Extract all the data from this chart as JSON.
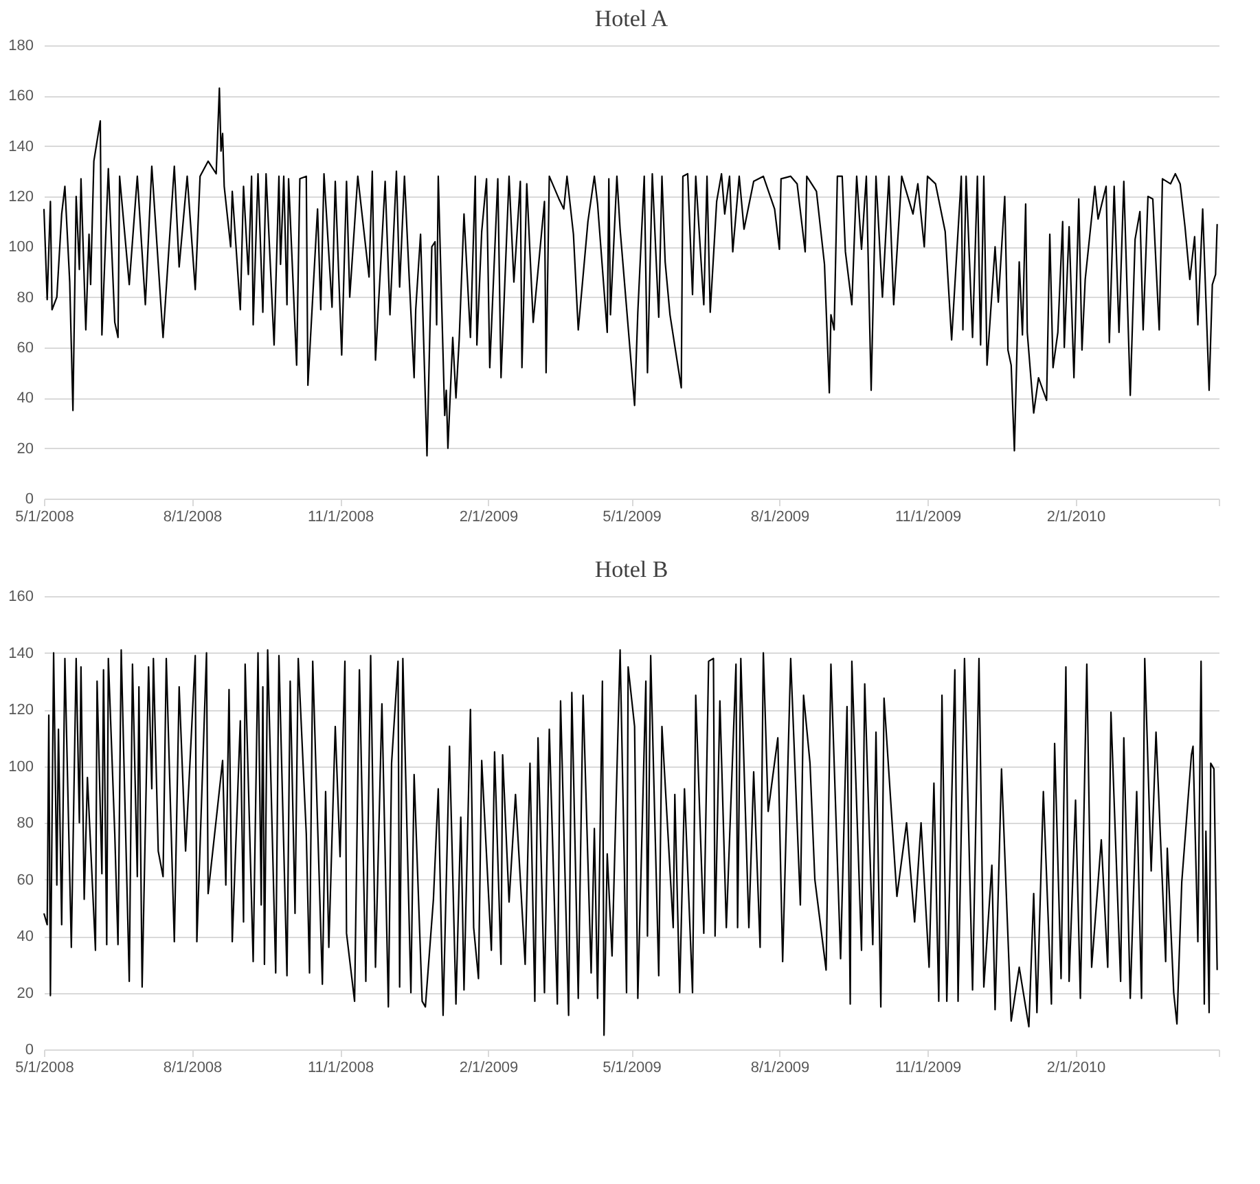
{
  "chart_data": [
    {
      "type": "line",
      "title": "Hotel A",
      "color": "#000000",
      "grid": "y",
      "line_style": "solid",
      "xlim": [
        "2008-05-01",
        "2010-05-01"
      ],
      "xticks": [
        {
          "value": "2008-05-01",
          "label": "5/1/2008"
        },
        {
          "value": "2008-08-01",
          "label": "8/1/2008"
        },
        {
          "value": "2008-11-01",
          "label": "11/1/2008"
        },
        {
          "value": "2009-02-01",
          "label": "2/1/2009"
        },
        {
          "value": "2009-05-01",
          "label": "5/1/2009"
        },
        {
          "value": "2009-08-01",
          "label": "8/1/2009"
        },
        {
          "value": "2009-11-01",
          "label": "11/1/2009"
        },
        {
          "value": "2010-02-01",
          "label": "2/1/2010"
        },
        {
          "value": "2010-05-01",
          "label": null
        }
      ],
      "ylim": [
        0,
        180
      ],
      "yticks": [
        0,
        20,
        40,
        60,
        80,
        100,
        120,
        140,
        160,
        180
      ],
      "x": [
        "2008-05-01",
        "2008-05-03",
        "2008-05-05",
        "2008-05-06",
        "2008-05-09",
        "2008-05-12",
        "2008-05-14",
        "2008-05-17",
        "2008-05-19",
        "2008-05-21",
        "2008-05-23",
        "2008-05-24",
        "2008-05-27",
        "2008-05-29",
        "2008-05-30",
        "2008-06-01",
        "2008-06-05",
        "2008-06-06",
        "2008-06-10",
        "2008-06-14",
        "2008-06-16",
        "2008-06-17",
        "2008-06-23",
        "2008-06-28",
        "2008-07-03",
        "2008-07-07",
        "2008-07-14",
        "2008-07-21",
        "2008-07-24",
        "2008-07-29",
        "2008-08-03",
        "2008-08-06",
        "2008-08-11",
        "2008-08-16",
        "2008-08-18",
        "2008-08-19",
        "2008-08-20",
        "2008-08-21",
        "2008-08-25",
        "2008-08-26",
        "2008-08-31",
        "2008-09-02",
        "2008-09-05",
        "2008-09-07",
        "2008-09-08",
        "2008-09-11",
        "2008-09-14",
        "2008-09-16",
        "2008-09-21",
        "2008-09-24",
        "2008-09-25",
        "2008-09-27",
        "2008-09-29",
        "2008-09-30",
        "2008-10-05",
        "2008-10-07",
        "2008-10-11",
        "2008-10-12",
        "2008-10-18",
        "2008-10-20",
        "2008-10-22",
        "2008-10-27",
        "2008-10-29",
        "2008-11-02",
        "2008-11-05",
        "2008-11-07",
        "2008-11-12",
        "2008-11-19",
        "2008-11-21",
        "2008-11-23",
        "2008-11-29",
        "2008-12-02",
        "2008-12-06",
        "2008-12-08",
        "2008-12-11",
        "2008-12-14",
        "2008-12-17",
        "2008-12-18",
        "2008-12-21",
        "2008-12-25",
        "2008-12-28",
        "2008-12-30",
        "2008-12-31",
        "2009-01-01",
        "2009-01-05",
        "2009-01-06",
        "2009-01-07",
        "2009-01-10",
        "2009-01-12",
        "2009-01-14",
        "2009-01-17",
        "2009-01-21",
        "2009-01-24",
        "2009-01-25",
        "2009-01-28",
        "2009-01-31",
        "2009-02-02",
        "2009-02-07",
        "2009-02-09",
        "2009-02-14",
        "2009-02-17",
        "2009-02-21",
        "2009-02-22",
        "2009-02-25",
        "2009-03-01",
        "2009-03-08",
        "2009-03-09",
        "2009-03-11",
        "2009-03-17",
        "2009-03-20",
        "2009-03-22",
        "2009-03-26",
        "2009-03-29",
        "2009-04-04",
        "2009-04-08",
        "2009-04-10",
        "2009-04-16",
        "2009-04-17",
        "2009-04-18",
        "2009-04-22",
        "2009-04-24",
        "2009-05-03",
        "2009-05-05",
        "2009-05-09",
        "2009-05-11",
        "2009-05-14",
        "2009-05-18",
        "2009-05-20",
        "2009-05-22",
        "2009-05-25",
        "2009-06-01",
        "2009-06-02",
        "2009-06-05",
        "2009-06-08",
        "2009-06-10",
        "2009-06-15",
        "2009-06-17",
        "2009-06-19",
        "2009-06-23",
        "2009-06-26",
        "2009-06-28",
        "2009-07-01",
        "2009-07-03",
        "2009-07-07",
        "2009-07-10",
        "2009-07-16",
        "2009-07-22",
        "2009-07-29",
        "2009-08-01",
        "2009-08-02",
        "2009-08-08",
        "2009-08-12",
        "2009-08-17",
        "2009-08-18",
        "2009-08-24",
        "2009-08-29",
        "2009-09-01",
        "2009-09-02",
        "2009-09-04",
        "2009-09-06",
        "2009-09-09",
        "2009-09-11",
        "2009-09-15",
        "2009-09-18",
        "2009-09-21",
        "2009-09-24",
        "2009-09-27",
        "2009-09-30",
        "2009-10-04",
        "2009-10-08",
        "2009-10-11",
        "2009-10-16",
        "2009-10-23",
        "2009-10-26",
        "2009-10-30",
        "2009-11-01",
        "2009-11-06",
        "2009-11-12",
        "2009-11-16",
        "2009-11-22",
        "2009-11-23",
        "2009-11-25",
        "2009-11-29",
        "2009-12-02",
        "2009-12-04",
        "2009-12-06",
        "2009-12-08",
        "2009-12-13",
        "2009-12-15",
        "2009-12-19",
        "2009-12-21",
        "2009-12-23",
        "2009-12-25",
        "2009-12-28",
        "2009-12-30",
        "2010-01-01",
        "2010-01-02",
        "2010-01-06",
        "2010-01-09",
        "2010-01-14",
        "2010-01-16",
        "2010-01-18",
        "2010-01-21",
        "2010-01-24",
        "2010-01-25",
        "2010-01-28",
        "2010-01-31",
        "2010-02-03",
        "2010-02-05",
        "2010-02-07",
        "2010-02-13",
        "2010-02-15",
        "2010-02-20",
        "2010-02-22",
        "2010-02-25",
        "2010-02-28",
        "2010-03-03",
        "2010-03-07",
        "2010-03-10",
        "2010-03-13",
        "2010-03-15",
        "2010-03-18",
        "2010-03-21",
        "2010-03-25",
        "2010-03-27",
        "2010-04-01",
        "2010-04-04",
        "2010-04-07",
        "2010-04-10",
        "2010-04-13",
        "2010-04-16",
        "2010-04-18",
        "2010-04-21",
        "2010-04-25",
        "2010-04-27",
        "2010-04-29",
        "2010-04-30"
      ],
      "values": [
        115,
        79,
        118,
        75,
        80,
        113,
        124,
        86,
        35,
        120,
        91,
        127,
        67,
        105,
        85,
        134,
        150,
        65,
        131,
        70,
        64,
        128,
        85,
        128,
        77,
        132,
        64,
        132,
        92,
        128,
        83,
        128,
        134,
        129,
        163,
        138,
        145,
        124,
        100,
        122,
        75,
        124,
        89,
        128,
        69,
        129,
        74,
        129,
        61,
        128,
        93,
        128,
        77,
        127,
        53,
        127,
        128,
        45,
        115,
        75,
        129,
        76,
        126,
        57,
        126,
        80,
        128,
        88,
        130,
        55,
        126,
        73,
        130,
        84,
        128,
        87,
        48,
        75,
        105,
        17,
        100,
        102,
        69,
        128,
        33,
        43,
        20,
        64,
        40,
        63,
        113,
        64,
        128,
        61,
        106,
        127,
        52,
        127,
        48,
        128,
        86,
        126,
        52,
        125,
        70,
        118,
        50,
        128,
        119,
        115,
        128,
        105,
        67,
        110,
        128,
        117,
        66,
        127,
        73,
        128,
        107,
        37,
        74,
        128,
        50,
        129,
        72,
        128,
        94,
        73,
        44,
        128,
        129,
        81,
        128,
        77,
        128,
        74,
        118,
        129,
        113,
        128,
        98,
        128,
        107,
        126,
        128,
        115,
        99,
        127,
        128,
        125,
        98,
        128,
        122,
        93,
        42,
        73,
        67,
        128,
        128,
        98,
        77,
        128,
        99,
        128,
        43,
        128,
        80,
        128,
        77,
        128,
        113,
        125,
        100,
        128,
        125,
        106,
        63,
        128,
        67,
        128,
        64,
        128,
        61,
        128,
        53,
        100,
        78,
        120,
        59,
        53,
        19,
        94,
        65,
        117,
        66,
        34,
        48,
        39,
        105,
        52,
        66,
        110,
        60,
        108,
        48,
        119,
        59,
        87,
        124,
        111,
        124,
        62,
        124,
        66,
        126,
        41,
        103,
        114,
        67,
        120,
        119,
        67,
        127,
        125,
        129,
        125,
        108,
        87,
        104,
        69,
        115,
        43,
        85,
        89,
        109
      ]
    },
    {
      "type": "line",
      "title": "Hotel B",
      "color": "#000000",
      "grid": "y",
      "line_style": "solid",
      "xlim": [
        "2008-05-01",
        "2010-05-01"
      ],
      "xticks": [
        {
          "value": "2008-05-01",
          "label": "5/1/2008"
        },
        {
          "value": "2008-08-01",
          "label": "8/1/2008"
        },
        {
          "value": "2008-11-01",
          "label": "11/1/2008"
        },
        {
          "value": "2009-02-01",
          "label": "2/1/2009"
        },
        {
          "value": "2009-05-01",
          "label": "5/1/2009"
        },
        {
          "value": "2009-08-01",
          "label": "8/1/2009"
        },
        {
          "value": "2009-11-01",
          "label": "11/1/2009"
        },
        {
          "value": "2010-02-01",
          "label": "2/1/2010"
        },
        {
          "value": "2010-05-01",
          "label": null
        }
      ],
      "ylim": [
        0,
        160
      ],
      "yticks": [
        0,
        20,
        40,
        60,
        80,
        100,
        120,
        140,
        160
      ],
      "x": [
        "2008-05-01",
        "2008-05-03",
        "2008-05-04",
        "2008-05-05",
        "2008-05-07",
        "2008-05-09",
        "2008-05-10",
        "2008-05-12",
        "2008-05-14",
        "2008-05-18",
        "2008-05-21",
        "2008-05-23",
        "2008-05-24",
        "2008-05-26",
        "2008-05-28",
        "2008-06-02",
        "2008-06-03",
        "2008-06-06",
        "2008-06-07",
        "2008-06-09",
        "2008-06-10",
        "2008-06-14",
        "2008-06-16",
        "2008-06-18",
        "2008-06-23",
        "2008-06-25",
        "2008-06-28",
        "2008-06-29",
        "2008-07-01",
        "2008-07-05",
        "2008-07-07",
        "2008-07-08",
        "2008-07-11",
        "2008-07-14",
        "2008-07-16",
        "2008-07-21",
        "2008-07-24",
        "2008-07-28",
        "2008-08-03",
        "2008-08-04",
        "2008-08-10",
        "2008-08-11",
        "2008-08-16",
        "2008-08-20",
        "2008-08-22",
        "2008-08-24",
        "2008-08-26",
        "2008-08-31",
        "2008-09-02",
        "2008-09-03",
        "2008-09-08",
        "2008-09-11",
        "2008-09-13",
        "2008-09-14",
        "2008-09-15",
        "2008-09-17",
        "2008-09-22",
        "2008-09-24",
        "2008-09-29",
        "2008-10-01",
        "2008-10-04",
        "2008-10-06",
        "2008-10-11",
        "2008-10-13",
        "2008-10-15",
        "2008-10-21",
        "2008-10-23",
        "2008-10-25",
        "2008-10-29",
        "2008-11-01",
        "2008-11-04",
        "2008-11-05",
        "2008-11-10",
        "2008-11-13",
        "2008-11-17",
        "2008-11-20",
        "2008-11-23",
        "2008-11-27",
        "2008-12-01",
        "2008-12-03",
        "2008-12-07",
        "2008-12-08",
        "2008-12-10",
        "2008-12-15",
        "2008-12-17",
        "2008-12-22",
        "2008-12-24",
        "2008-12-29",
        "2009-01-01",
        "2009-01-04",
        "2009-01-08",
        "2009-01-12",
        "2009-01-15",
        "2009-01-17",
        "2009-01-21",
        "2009-01-23",
        "2009-01-26",
        "2009-01-28",
        "2009-02-03",
        "2009-02-05",
        "2009-02-09",
        "2009-02-10",
        "2009-02-14",
        "2009-02-18",
        "2009-02-24",
        "2009-02-27",
        "2009-03-02",
        "2009-03-04",
        "2009-03-08",
        "2009-03-11",
        "2009-03-16",
        "2009-03-18",
        "2009-03-23",
        "2009-03-25",
        "2009-03-29",
        "2009-04-01",
        "2009-04-06",
        "2009-04-08",
        "2009-04-10",
        "2009-04-13",
        "2009-04-14",
        "2009-04-16",
        "2009-04-19",
        "2009-04-24",
        "2009-04-26",
        "2009-04-28",
        "2009-04-29",
        "2009-05-03",
        "2009-05-05",
        "2009-05-10",
        "2009-05-11",
        "2009-05-13",
        "2009-05-18",
        "2009-05-20",
        "2009-05-27",
        "2009-05-28",
        "2009-05-31",
        "2009-06-03",
        "2009-06-08",
        "2009-06-10",
        "2009-06-15",
        "2009-06-18",
        "2009-06-21",
        "2009-06-22",
        "2009-06-25",
        "2009-06-29",
        "2009-07-05",
        "2009-07-06",
        "2009-07-08",
        "2009-07-13",
        "2009-07-16",
        "2009-07-20",
        "2009-07-22",
        "2009-07-25",
        "2009-07-31",
        "2009-08-03",
        "2009-08-08",
        "2009-08-14",
        "2009-08-16",
        "2009-08-20",
        "2009-08-23",
        "2009-08-30",
        "2009-09-02",
        "2009-09-08",
        "2009-09-12",
        "2009-09-14",
        "2009-09-15",
        "2009-09-21",
        "2009-09-23",
        "2009-09-28",
        "2009-09-30",
        "2009-10-03",
        "2009-10-05",
        "2009-10-13",
        "2009-10-19",
        "2009-10-24",
        "2009-10-28",
        "2009-11-02",
        "2009-11-05",
        "2009-11-08",
        "2009-11-10",
        "2009-11-13",
        "2009-11-18",
        "2009-11-20",
        "2009-11-24",
        "2009-11-29",
        "2009-12-03",
        "2009-12-06",
        "2009-12-11",
        "2009-12-13",
        "2009-12-17",
        "2009-12-23",
        "2009-12-28",
        "2010-01-03",
        "2010-01-06",
        "2010-01-08",
        "2010-01-12",
        "2010-01-17",
        "2010-01-19",
        "2010-01-23",
        "2010-01-26",
        "2010-01-28",
        "2010-02-01",
        "2010-02-04",
        "2010-02-08",
        "2010-02-11",
        "2010-02-17",
        "2010-02-21",
        "2010-02-23",
        "2010-03-01",
        "2010-03-03",
        "2010-03-07",
        "2010-03-11",
        "2010-03-14",
        "2010-03-16",
        "2010-03-20",
        "2010-03-23",
        "2010-03-29",
        "2010-03-30",
        "2010-04-03",
        "2010-04-05",
        "2010-04-08",
        "2010-04-14",
        "2010-04-15",
        "2010-04-18",
        "2010-04-20",
        "2010-04-22",
        "2010-04-23",
        "2010-04-25",
        "2010-04-26",
        "2010-04-28",
        "2010-04-30"
      ],
      "values": [
        48,
        44,
        118,
        19,
        140,
        58,
        113,
        44,
        138,
        36,
        138,
        80,
        135,
        53,
        96,
        35,
        130,
        62,
        134,
        37,
        138,
        76,
        37,
        141,
        24,
        136,
        61,
        128,
        22,
        135,
        92,
        138,
        70,
        61,
        138,
        38,
        128,
        70,
        139,
        38,
        140,
        55,
        81,
        102,
        58,
        127,
        38,
        116,
        45,
        136,
        31,
        140,
        51,
        128,
        30,
        141,
        27,
        139,
        26,
        130,
        48,
        138,
        76,
        27,
        137,
        23,
        91,
        36,
        114,
        68,
        137,
        41,
        17,
        134,
        24,
        139,
        29,
        122,
        15,
        101,
        137,
        22,
        138,
        20,
        97,
        17,
        15,
        53,
        92,
        12,
        107,
        16,
        82,
        21,
        120,
        43,
        25,
        102,
        35,
        105,
        30,
        104,
        52,
        90,
        30,
        101,
        17,
        110,
        20,
        113,
        16,
        123,
        12,
        126,
        18,
        125,
        27,
        78,
        18,
        130,
        5,
        69,
        33,
        141,
        83,
        20,
        135,
        114,
        18,
        130,
        40,
        139,
        26,
        114,
        43,
        90,
        20,
        92,
        20,
        125,
        41,
        137,
        138,
        40,
        123,
        43,
        136,
        43,
        138,
        43,
        98,
        36,
        140,
        84,
        110,
        31,
        138,
        51,
        125,
        101,
        60,
        28,
        136,
        32,
        121,
        16,
        137,
        35,
        129,
        37,
        112,
        15,
        124,
        54,
        80,
        45,
        80,
        29,
        94,
        17,
        125,
        17,
        134,
        17,
        138,
        21,
        138,
        22,
        65,
        14,
        99,
        10,
        29,
        8,
        55,
        13,
        91,
        16,
        108,
        25,
        135,
        24,
        88,
        18,
        136,
        29,
        74,
        29,
        119,
        24,
        110,
        18,
        91,
        18,
        138,
        63,
        112,
        31,
        71,
        20,
        9,
        59,
        104,
        107,
        38,
        137,
        16,
        77,
        13,
        101,
        99,
        28
      ]
    }
  ]
}
